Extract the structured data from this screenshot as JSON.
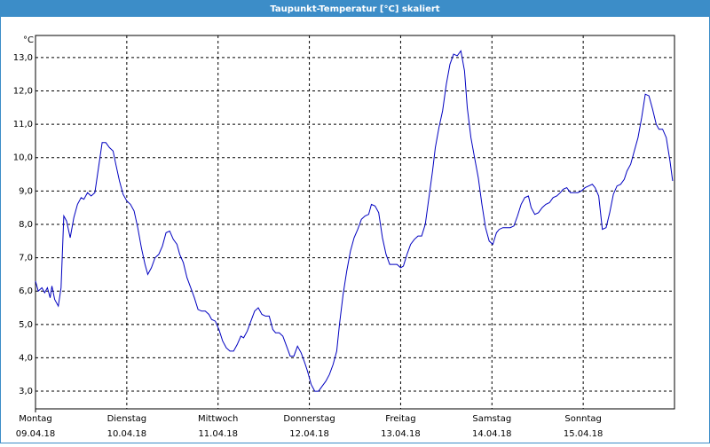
{
  "chart_data": {
    "type": "line",
    "title": "Taupunkt-Temperatur [°C] skaliert",
    "ylabel": "°C",
    "xlim": [
      0,
      7
    ],
    "xticks": [
      {
        "value": 0,
        "label": "Montag"
      },
      {
        "value": 1,
        "label": "Dienstag"
      },
      {
        "value": 2,
        "label": "Mittwoch"
      },
      {
        "value": 3,
        "label": "Donnerstag"
      },
      {
        "value": 4,
        "label": "Freitag"
      },
      {
        "value": 5,
        "label": "Samstag"
      },
      {
        "value": 6,
        "label": "Sonntag"
      }
    ],
    "xtick_dates": [
      "09.04.18",
      "10.04.18",
      "11.04.18",
      "12.04.18",
      "13.04.18",
      "14.04.18",
      "15.04.18"
    ],
    "ylim": [
      2.47,
      13.66
    ],
    "yticks": [
      {
        "value": 3,
        "label": "3,0"
      },
      {
        "value": 4,
        "label": "4,0"
      },
      {
        "value": 5,
        "label": "5,0"
      },
      {
        "value": 6,
        "label": "6,0"
      },
      {
        "value": 7,
        "label": "7,0"
      },
      {
        "value": 8,
        "label": "8,0"
      },
      {
        "value": 9,
        "label": "9,0"
      },
      {
        "value": 10,
        "label": "10,0"
      },
      {
        "value": 11,
        "label": "11,0"
      },
      {
        "value": 12,
        "label": "12,0"
      },
      {
        "value": 13,
        "label": "13,0"
      }
    ],
    "grid": true,
    "series": [
      {
        "color": "#0000c0",
        "x": [
          0,
          0.03,
          0.07,
          0.1,
          0.13,
          0.16,
          0.18,
          0.21,
          0.25,
          0.28,
          0.31,
          0.34,
          0.38,
          0.42,
          0.46,
          0.5,
          0.53,
          0.57,
          0.61,
          0.65,
          0.69,
          0.73,
          0.77,
          0.81,
          0.85,
          0.88,
          0.92,
          0.96,
          1.0,
          1.04,
          1.08,
          1.12,
          1.16,
          1.2,
          1.23,
          1.27,
          1.31,
          1.35,
          1.39,
          1.43,
          1.47,
          1.51,
          1.55,
          1.58,
          1.62,
          1.66,
          1.7,
          1.74,
          1.78,
          1.82,
          1.86,
          1.9,
          1.93,
          1.97,
          2.01,
          2.05,
          2.09,
          2.13,
          2.17,
          2.21,
          2.25,
          2.28,
          2.32,
          2.36,
          2.4,
          2.44,
          2.48,
          2.52,
          2.56,
          2.6,
          2.63,
          2.67,
          2.71,
          2.75,
          2.79,
          2.83,
          2.87,
          2.91,
          2.95,
          2.98,
          3.02,
          3.06,
          3.1,
          3.14,
          3.18,
          3.22,
          3.26,
          3.3,
          3.33,
          3.37,
          3.41,
          3.45,
          3.49,
          3.53,
          3.57,
          3.61,
          3.65,
          3.68,
          3.72,
          3.76,
          3.8,
          3.84,
          3.88,
          3.92,
          3.96,
          4.0,
          4.03,
          4.07,
          4.11,
          4.15,
          4.19,
          4.23,
          4.27,
          4.31,
          4.35,
          4.38,
          4.42,
          4.46,
          4.5,
          4.54,
          4.58,
          4.62,
          4.66,
          4.7,
          4.73,
          4.77,
          4.81,
          4.85,
          4.89,
          4.93,
          4.97,
          5.01,
          5.05,
          5.08,
          5.12,
          5.16,
          5.2,
          5.24,
          5.28,
          5.32,
          5.36,
          5.4,
          5.43,
          5.47,
          5.51,
          5.55,
          5.59,
          5.63,
          5.67,
          5.71,
          5.75,
          5.78,
          5.82,
          5.86,
          5.9,
          5.94,
          5.98,
          6.02,
          6.06,
          6.1,
          6.13,
          6.17,
          6.21,
          6.25,
          6.29,
          6.33,
          6.37,
          6.41,
          6.45,
          6.48,
          6.52,
          6.56,
          6.6,
          6.64,
          6.68,
          6.72,
          6.76,
          6.8,
          6.83,
          6.87,
          6.91,
          6.95,
          6.98
        ],
        "values": [
          6.3,
          6.0,
          6.1,
          5.95,
          6.1,
          5.8,
          6.15,
          5.75,
          5.55,
          6.1,
          8.25,
          8.1,
          7.6,
          8.2,
          8.6,
          8.8,
          8.75,
          8.95,
          8.85,
          8.95,
          9.7,
          10.45,
          10.45,
          10.3,
          10.2,
          9.8,
          9.3,
          8.9,
          8.7,
          8.6,
          8.4,
          7.9,
          7.3,
          6.8,
          6.5,
          6.7,
          7.0,
          7.1,
          7.35,
          7.75,
          7.8,
          7.55,
          7.4,
          7.1,
          6.85,
          6.4,
          6.1,
          5.8,
          5.45,
          5.4,
          5.4,
          5.3,
          5.15,
          5.1,
          4.85,
          4.5,
          4.3,
          4.2,
          4.2,
          4.4,
          4.65,
          4.6,
          4.8,
          5.1,
          5.4,
          5.5,
          5.3,
          5.25,
          5.25,
          4.85,
          4.75,
          4.75,
          4.65,
          4.35,
          4.05,
          4.05,
          4.35,
          4.15,
          3.85,
          3.6,
          3.2,
          3.0,
          3.0,
          3.15,
          3.3,
          3.5,
          3.8,
          4.2,
          5.0,
          5.9,
          6.6,
          7.2,
          7.6,
          7.85,
          8.15,
          8.25,
          8.3,
          8.6,
          8.55,
          8.35,
          7.6,
          7.1,
          6.8,
          6.8,
          6.8,
          6.7,
          6.75,
          7.1,
          7.4,
          7.55,
          7.65,
          7.65,
          8.0,
          8.8,
          9.6,
          10.3,
          10.9,
          11.4,
          12.2,
          12.8,
          13.1,
          13.05,
          13.2,
          12.6,
          11.5,
          10.6,
          10.0,
          9.4,
          8.6,
          7.9,
          7.5,
          7.4,
          7.75,
          7.85,
          7.9,
          7.9,
          7.9,
          7.95,
          8.25,
          8.6,
          8.8,
          8.85,
          8.5,
          8.3,
          8.35,
          8.5,
          8.6,
          8.65,
          8.8,
          8.85,
          8.95,
          9.05,
          9.1,
          8.95,
          8.95,
          8.95,
          9.0,
          9.1,
          9.15,
          9.2,
          9.1,
          8.85,
          7.85,
          7.9,
          8.35,
          8.9,
          9.15,
          9.2,
          9.35,
          9.6,
          9.8,
          10.2,
          10.6,
          11.2,
          11.9,
          11.85,
          11.45,
          11.0,
          10.85,
          10.85,
          10.6,
          9.9,
          9.3
        ]
      }
    ]
  }
}
